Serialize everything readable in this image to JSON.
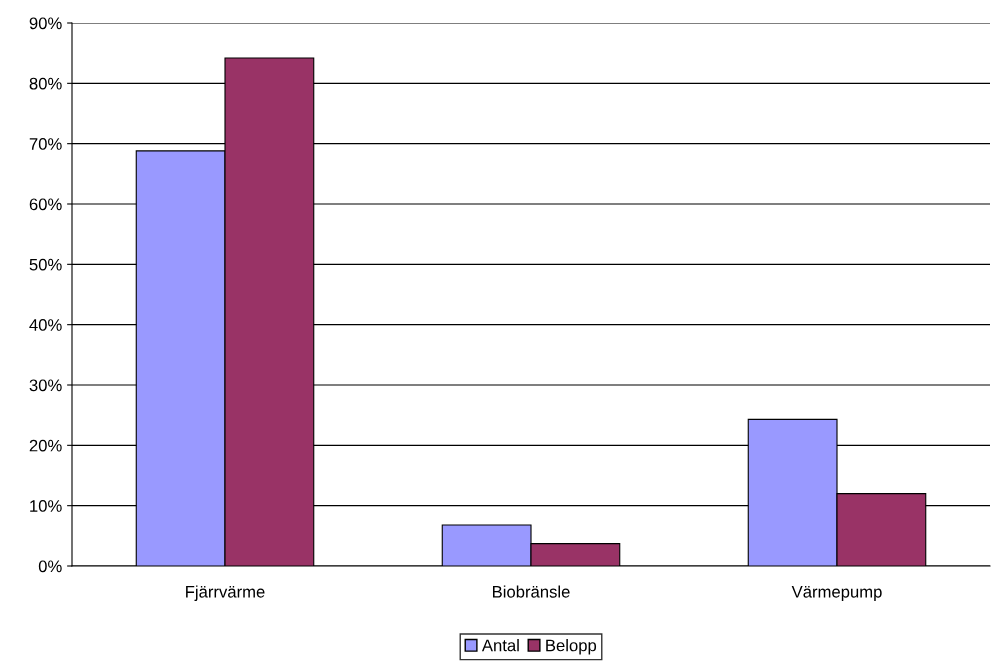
{
  "chart_data": {
    "type": "bar",
    "categories": [
      "Fjärrvärme",
      "Biobränsle",
      "Värmepump"
    ],
    "series": [
      {
        "name": "Antal",
        "color": "#9999ff",
        "values": [
          68.8,
          6.8,
          24.3
        ]
      },
      {
        "name": "Belopp",
        "color": "#993366",
        "values": [
          84.2,
          3.7,
          12.0
        ]
      }
    ],
    "ylim": [
      0,
      90
    ],
    "yticks": [
      {
        "value": 0,
        "label": "0%"
      },
      {
        "value": 10,
        "label": "10%"
      },
      {
        "value": 20,
        "label": "20%"
      },
      {
        "value": 30,
        "label": "30%"
      },
      {
        "value": 40,
        "label": "40%"
      },
      {
        "value": 50,
        "label": "50%"
      },
      {
        "value": 60,
        "label": "60%"
      },
      {
        "value": 70,
        "label": "70%"
      },
      {
        "value": 80,
        "label": "80%"
      },
      {
        "value": 90,
        "label": "90%"
      }
    ],
    "grid": "y",
    "legend": "bottom"
  }
}
